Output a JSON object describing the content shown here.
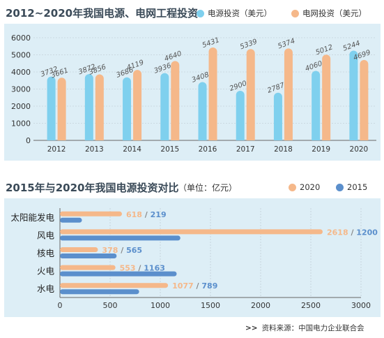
{
  "chart_data": [
    {
      "type": "bar",
      "title": "2012~2020年我国电源、电网工程投资",
      "categories": [
        "2012",
        "2013",
        "2014",
        "2015",
        "2016",
        "2017",
        "2018",
        "2019",
        "2020"
      ],
      "series": [
        {
          "name": "电源投资（美元）",
          "values": [
            3732,
            3872,
            3686,
            3936,
            3408,
            2900,
            2787,
            4060,
            5244
          ]
        },
        {
          "name": "电网投资（美元）",
          "values": [
            3661,
            3856,
            4119,
            4640,
            5431,
            5339,
            5374,
            5012,
            4699
          ]
        }
      ],
      "yticks": [
        "0",
        "1000",
        "2000",
        "3000",
        "4000",
        "5000",
        "6000"
      ],
      "ylim": [
        0,
        6000
      ],
      "grid": true,
      "legend": "top-right"
    },
    {
      "type": "bar",
      "orientation": "horizontal",
      "title": "2015年与2020年我国电源投资对比",
      "unit": "（单位：亿元）",
      "categories": [
        "太阳能发电",
        "风电",
        "核电",
        "火电",
        "水电"
      ],
      "series": [
        {
          "name": "2020",
          "values": [
            618,
            2618,
            378,
            553,
            1077
          ]
        },
        {
          "name": "2015",
          "values": [
            219,
            1200,
            565,
            1163,
            789
          ]
        }
      ],
      "xticks": [
        "0",
        "500",
        "1000",
        "1500",
        "2000",
        "2500",
        "3000"
      ],
      "xlim": [
        0,
        3000
      ],
      "grid": true,
      "legend": "top-right"
    }
  ],
  "colors": {
    "light_blue": "#7fd0ee",
    "orange": "#f5b88a",
    "dark_blue": "#5b8fcc",
    "panel_bg": "#ddeef6"
  },
  "separator": "/",
  "source": "资料来源：中国电力企业联合会",
  "source_icon": ">>"
}
